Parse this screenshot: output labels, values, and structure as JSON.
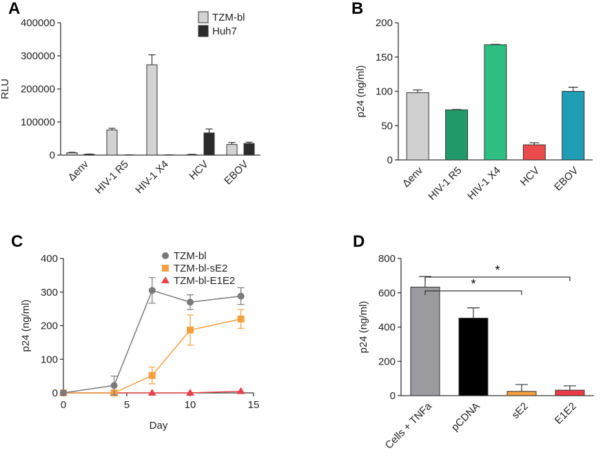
{
  "chart_data": [
    {
      "panel": "A",
      "type": "bar",
      "ylabel": "RLU",
      "ylim": [
        0,
        400000
      ],
      "yticks": [
        0,
        100000,
        200000,
        300000,
        400000
      ],
      "categories": [
        "Δenv",
        "HIV-1 R5",
        "HIV-1 X4",
        "HCV",
        "EBOV"
      ],
      "series": [
        {
          "name": "TZM-bl",
          "color": "#d3d3d3",
          "values": [
            7000,
            76000,
            273000,
            1500,
            32000
          ],
          "errors": [
            1500,
            5000,
            30000,
            800,
            6000
          ]
        },
        {
          "name": "Huh7",
          "color": "#2b2b2b",
          "values": [
            2500,
            500,
            500,
            67000,
            35000
          ],
          "errors": [
            800,
            300,
            300,
            12000,
            4000
          ]
        }
      ],
      "legend": "top-right"
    },
    {
      "panel": "B",
      "type": "bar",
      "ylabel": "p24 (ng/ml)",
      "ylim": [
        0,
        200
      ],
      "yticks": [
        0,
        50,
        100,
        150,
        200
      ],
      "categories": [
        "Δenv",
        "HIV-1 R5",
        "HIV-1 X4",
        "HCV",
        "EBOV"
      ],
      "values": [
        98,
        73,
        168,
        22,
        100
      ],
      "errors": [
        4,
        0.5,
        0.5,
        3,
        6
      ],
      "colors": [
        "#d0d0d0",
        "#1f9a68",
        "#2ebf82",
        "#ec4b4b",
        "#1e9db4"
      ]
    },
    {
      "panel": "C",
      "type": "line",
      "xlabel": "Day",
      "ylabel": "p24 (ng/ml)",
      "xlim": [
        0,
        15
      ],
      "ylim": [
        0,
        400
      ],
      "xticks": [
        0,
        5,
        10,
        15
      ],
      "yticks": [
        0,
        100,
        200,
        300,
        400
      ],
      "x": [
        0,
        4,
        7,
        10,
        14
      ],
      "series": [
        {
          "name": "TZM-bl",
          "color": "#7a7a7a",
          "marker": "circle",
          "values": [
            0,
            22,
            305,
            270,
            288
          ],
          "errors": [
            0,
            28,
            38,
            22,
            25
          ]
        },
        {
          "name": "TZM-bl-sE2",
          "color": "#f4a040",
          "marker": "square",
          "values": [
            0,
            0,
            52,
            187,
            220
          ],
          "errors": [
            0,
            0,
            25,
            45,
            28
          ]
        },
        {
          "name": "TZM-bl-E1E2",
          "color": "#e8404a",
          "marker": "triangle",
          "values": [
            0,
            0,
            0,
            0,
            5
          ],
          "errors": [
            0,
            0,
            0,
            0,
            0
          ]
        }
      ],
      "legend": "top-right"
    },
    {
      "panel": "D",
      "type": "bar",
      "ylabel": "p24 (ng/ml)",
      "ylim": [
        0,
        800
      ],
      "yticks": [
        0,
        200,
        400,
        600,
        800
      ],
      "categories": [
        "Cells + TNFa",
        "pCDNA",
        "sE2",
        "E1E2"
      ],
      "values": [
        633,
        452,
        25,
        32
      ],
      "errors": [
        62,
        60,
        40,
        25
      ],
      "colors": [
        "#9a9a9f",
        "#000000",
        "#f4a040",
        "#ea3c48"
      ],
      "annotations": [
        {
          "from": "Cells + TNFa",
          "to": "E1E2",
          "label": "*"
        },
        {
          "from": "Cells + TNFa",
          "to": "sE2",
          "label": "*"
        }
      ]
    }
  ]
}
